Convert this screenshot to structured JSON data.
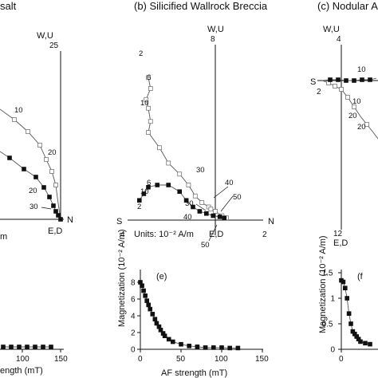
{
  "panels": {
    "a": {
      "title_fragment": "salt",
      "top_tick": "25",
      "top_label": "W,U",
      "bottom_label": "E,D",
      "right_label": "N",
      "units_fragment": "m",
      "step_labels": [
        "10",
        "20",
        "20",
        "30"
      ]
    },
    "b": {
      "title": "(b) Silicified Wallrock Breccia",
      "top_tick": "8",
      "top_label": "W,U",
      "left_label": "S",
      "right_label": "N",
      "left_tick": "4",
      "right_tick": "2",
      "bottom_label": "E,D",
      "units": "Units: 10⁻² A/m",
      "step_labels": [
        "2",
        "6",
        "10",
        "30",
        "40",
        "50",
        "6",
        "10",
        "2",
        "30",
        "40",
        "50"
      ]
    },
    "c": {
      "title_fragment": "(c) Nodular A",
      "top_tick": "4",
      "top_label": "W,U",
      "left_label": "S",
      "left_tick": "2",
      "bottom_tick": "12",
      "bottom_label": "E,D",
      "step_labels": [
        "10",
        "10",
        "20",
        "20"
      ]
    },
    "d": {
      "xlabel_fragment": "ength (mT)",
      "tick_labels": [
        "100",
        "150"
      ]
    },
    "e": {
      "panel_label": "(e)",
      "ylabel": "Magnetization (10⁻² A/m)",
      "xlabel": "AF strength (mT)",
      "xticks": [
        "0",
        "50",
        "100",
        "150"
      ],
      "yticks": [
        "0",
        "2",
        "4",
        "6",
        "8"
      ]
    },
    "f": {
      "panel_label": "(f",
      "ylabel": "Magnetization (10⁻² A/m)",
      "xticks": [
        "0"
      ],
      "yticks": [
        "0",
        "0.5",
        "1",
        "1.5"
      ]
    }
  },
  "chart_data": [
    {
      "type": "scatter",
      "panel": "b",
      "title": "(b) Silicified Wallrock Breccia",
      "xlabel": "",
      "ylabel": "",
      "units": "Units: 10⁻² A/m",
      "x_axis": {
        "negative_end": "S",
        "positive_end": "N",
        "range": [
          -4,
          2
        ]
      },
      "y_axis": {
        "top": "W,U",
        "bottom": "E,D",
        "range": [
          0,
          8
        ]
      },
      "series": [
        {
          "marker": "open",
          "x": [
            -3.0,
            -2.9,
            -3.1,
            -3.0,
            -2.9,
            -3.0,
            -2.5,
            -2.1,
            -1.6,
            -1.2,
            -0.9,
            -0.6,
            -0.3,
            -0.2,
            0.0,
            0.3,
            0.5
          ],
          "y": [
            6.5,
            6.0,
            5.5,
            5.1,
            4.5,
            4.0,
            3.3,
            2.6,
            2.1,
            1.6,
            1.1,
            0.8,
            0.6,
            0.5,
            0.4,
            0.2,
            0.1
          ]
        },
        {
          "marker": "filled",
          "x": [
            -3.4,
            -3.2,
            -3.0,
            -2.6,
            -2.1,
            -1.6,
            -1.3,
            -1.0,
            -0.7,
            -0.4,
            -0.1,
            0.2,
            0.4
          ],
          "y": [
            0.9,
            1.2,
            1.5,
            1.6,
            1.6,
            1.3,
            0.9,
            0.6,
            0.4,
            0.3,
            0.2,
            0.15,
            0.1
          ]
        }
      ]
    },
    {
      "type": "line",
      "panel": "e",
      "xlabel": "AF strength (mT)",
      "ylabel": "Magnetization (10⁻² A/m)",
      "xlim": [
        0,
        150
      ],
      "ylim": [
        0,
        9
      ],
      "x": [
        0,
        2,
        4,
        6,
        8,
        10,
        12,
        15,
        18,
        20,
        23,
        25,
        28,
        30,
        35,
        40,
        50,
        60,
        70,
        80,
        90,
        100,
        110,
        120
      ],
      "values": [
        8.0,
        7.6,
        7.0,
        6.4,
        5.8,
        5.3,
        4.8,
        4.2,
        3.6,
        3.1,
        2.7,
        2.3,
        1.9,
        1.6,
        1.2,
        0.9,
        0.6,
        0.4,
        0.3,
        0.2,
        0.2,
        0.2,
        0.15,
        0.15
      ]
    },
    {
      "type": "line",
      "panel": "d",
      "xlabel": "",
      "ylabel": "",
      "x": [
        60,
        70,
        80,
        90,
        100,
        110,
        120,
        130
      ],
      "values": [
        0.1,
        0.1,
        0.1,
        0.1,
        0.1,
        0.1,
        0.1,
        0.1
      ]
    },
    {
      "type": "line",
      "panel": "f",
      "xlabel": "",
      "ylabel": "Magnetization (10⁻² A/m)",
      "ylim": [
        0,
        1.5
      ],
      "x": [
        0,
        2,
        4,
        6,
        8,
        10,
        12,
        14,
        16,
        18,
        20,
        25,
        30
      ],
      "values": [
        1.35,
        1.32,
        1.2,
        1.0,
        0.7,
        0.5,
        0.35,
        0.3,
        0.25,
        0.2,
        0.15,
        0.12,
        0.1
      ]
    }
  ]
}
